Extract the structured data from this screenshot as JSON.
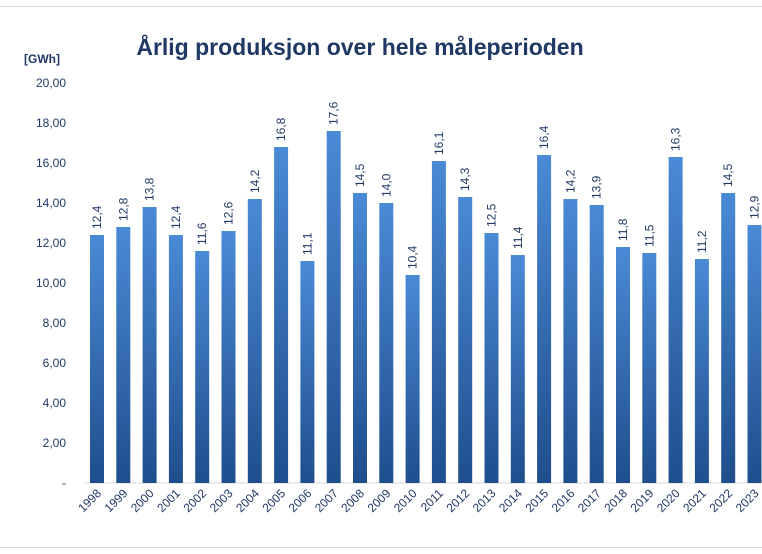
{
  "chart_data": {
    "type": "bar",
    "title": "Årlig produksjon over hele måleperioden",
    "ylabel": "[GWh]",
    "xlabel": "",
    "ylim": [
      0,
      20
    ],
    "ytick_labels": [
      "-",
      "2,00",
      "4,00",
      "6,00",
      "8,00",
      "10,00",
      "12,00",
      "14,00",
      "16,00",
      "18,00",
      "20,00"
    ],
    "grid": false,
    "legend": "none",
    "categories": [
      "1998",
      "1999",
      "2000",
      "2001",
      "2002",
      "2003",
      "2004",
      "2005",
      "2006",
      "2007",
      "2008",
      "2009",
      "2010",
      "2011",
      "2012",
      "2013",
      "2014",
      "2015",
      "2016",
      "2017",
      "2018",
      "2019",
      "2020",
      "2021",
      "2022",
      "2023"
    ],
    "values": [
      12.4,
      12.8,
      13.8,
      12.4,
      11.6,
      12.6,
      14.2,
      16.8,
      11.1,
      17.6,
      14.5,
      14.0,
      10.4,
      16.1,
      14.3,
      12.5,
      11.4,
      16.4,
      14.2,
      13.9,
      11.8,
      11.5,
      16.3,
      11.2,
      14.5,
      12.9
    ],
    "data_labels": [
      "12,4",
      "12,8",
      "13,8",
      "12,4",
      "11,6",
      "12,6",
      "14,2",
      "16,8",
      "11,1",
      "17,6",
      "14,5",
      "14,0",
      "10,4",
      "16,1",
      "14,3",
      "12,5",
      "11,4",
      "16,4",
      "14,2",
      "13,9",
      "11,8",
      "11,5",
      "16,3",
      "11,2",
      "14,5",
      "12,9"
    ],
    "colors": {
      "bar_top": "#4a8ad6",
      "bar_bottom": "#1f4e8c",
      "text": "#1f3864"
    }
  }
}
